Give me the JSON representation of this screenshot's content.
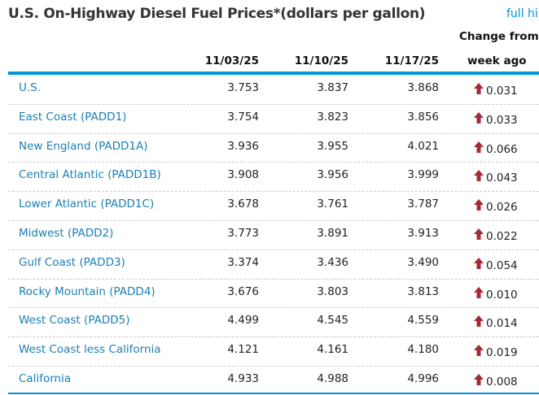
{
  "title": "U.S. On-Highway Diesel Fuel Prices*(dollars per gallon)",
  "full_history_link": "full hi",
  "headers": {
    "d1": "11/03/25",
    "d2": "11/10/25",
    "d3": "11/17/25",
    "change_line1": "Change from",
    "change_line2": "week ago"
  },
  "colors": {
    "accent": "#0096d6",
    "arrow_up": "#a32a3a"
  },
  "rows": [
    {
      "label": "U.S.",
      "d1": "3.753",
      "d2": "3.837",
      "d3": "3.868",
      "change": "0.031",
      "dir": "up"
    },
    {
      "label": "East Coast (PADD1)",
      "d1": "3.754",
      "d2": "3.823",
      "d3": "3.856",
      "change": "0.033",
      "dir": "up"
    },
    {
      "label": "New England (PADD1A)",
      "d1": "3.936",
      "d2": "3.955",
      "d3": "4.021",
      "change": "0.066",
      "dir": "up"
    },
    {
      "label": "Central Atlantic (PADD1B)",
      "d1": "3.908",
      "d2": "3.956",
      "d3": "3.999",
      "change": "0.043",
      "dir": "up"
    },
    {
      "label": "Lower Atlantic (PADD1C)",
      "d1": "3.678",
      "d2": "3.761",
      "d3": "3.787",
      "change": "0.026",
      "dir": "up"
    },
    {
      "label": "Midwest (PADD2)",
      "d1": "3.773",
      "d2": "3.891",
      "d3": "3.913",
      "change": "0.022",
      "dir": "up"
    },
    {
      "label": "Gulf Coast (PADD3)",
      "d1": "3.374",
      "d2": "3.436",
      "d3": "3.490",
      "change": "0.054",
      "dir": "up"
    },
    {
      "label": "Rocky Mountain (PADD4)",
      "d1": "3.676",
      "d2": "3.803",
      "d3": "3.813",
      "change": "0.010",
      "dir": "up"
    },
    {
      "label": "West Coast (PADD5)",
      "d1": "4.499",
      "d2": "4.545",
      "d3": "4.559",
      "change": "0.014",
      "dir": "up"
    },
    {
      "label": "West Coast less California",
      "d1": "4.121",
      "d2": "4.161",
      "d3": "4.180",
      "change": "0.019",
      "dir": "up"
    },
    {
      "label": "California",
      "d1": "4.933",
      "d2": "4.988",
      "d3": "4.996",
      "change": "0.008",
      "dir": "up"
    }
  ]
}
